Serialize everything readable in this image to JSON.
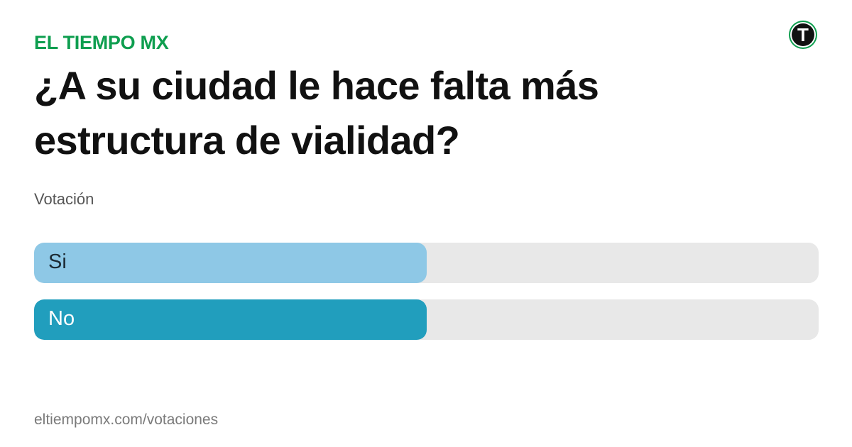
{
  "brand": {
    "name": "EL TIEMPO MX",
    "color": "#0e9e4f"
  },
  "logo": {
    "icon": "el-tiempo-t-logo-icon",
    "letter": "T",
    "colors": {
      "ring": "#0e9e4f",
      "circle": "#111111",
      "letter": "#ffffff"
    }
  },
  "poll": {
    "title": "¿A su ciudad le hace falta más estructura de vialidad?",
    "subtitle": "Votación",
    "options": [
      {
        "label": "Si",
        "share": 0.5,
        "fill_color": "#8ec8e6",
        "text_color": "#1c2a33"
      },
      {
        "label": "No",
        "share": 0.5,
        "fill_color": "#219ebd",
        "text_color": "#ffffff"
      }
    ],
    "track_color": "#e8e8e8"
  },
  "footer": {
    "url": "eltiempomx.com/votaciones"
  }
}
